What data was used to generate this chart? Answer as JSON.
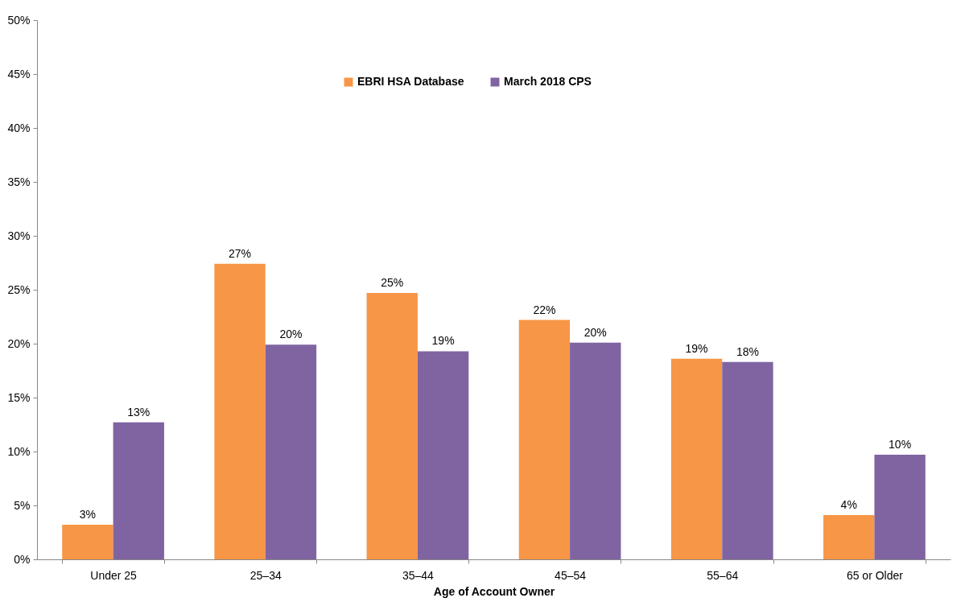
{
  "chart_data": {
    "type": "bar",
    "xlabel": "Age of Account Owner",
    "categories": [
      "Under 25",
      "25–34",
      "35–44",
      "45–54",
      "55–64",
      "65 or Older"
    ],
    "series": [
      {
        "name": "EBRI HSA Database",
        "color": "#f79646",
        "values": [
          3.2,
          27.4,
          24.7,
          22.2,
          18.6,
          4.1
        ],
        "value_labels": [
          "3%",
          "27%",
          "25%",
          "22%",
          "19%",
          "4%"
        ]
      },
      {
        "name": "March 2018 CPS",
        "color": "#8064a2",
        "values": [
          12.7,
          19.9,
          19.3,
          20.1,
          18.3,
          9.7
        ],
        "value_labels": [
          "13%",
          "20%",
          "19%",
          "20%",
          "18%",
          "10%"
        ]
      }
    ],
    "ylim": [
      0,
      50
    ],
    "yticks": [
      {
        "value": 0,
        "label": "0%"
      },
      {
        "value": 5,
        "label": "5%"
      },
      {
        "value": 10,
        "label": "10%"
      },
      {
        "value": 15,
        "label": "15%"
      },
      {
        "value": 20,
        "label": "20%"
      },
      {
        "value": 25,
        "label": "25%"
      },
      {
        "value": 30,
        "label": "30%"
      },
      {
        "value": 35,
        "label": "35%"
      },
      {
        "value": 40,
        "label": "40%"
      },
      {
        "value": 45,
        "label": "45%"
      },
      {
        "value": 50,
        "label": "50%"
      }
    ],
    "legend": "top",
    "grid": false
  }
}
